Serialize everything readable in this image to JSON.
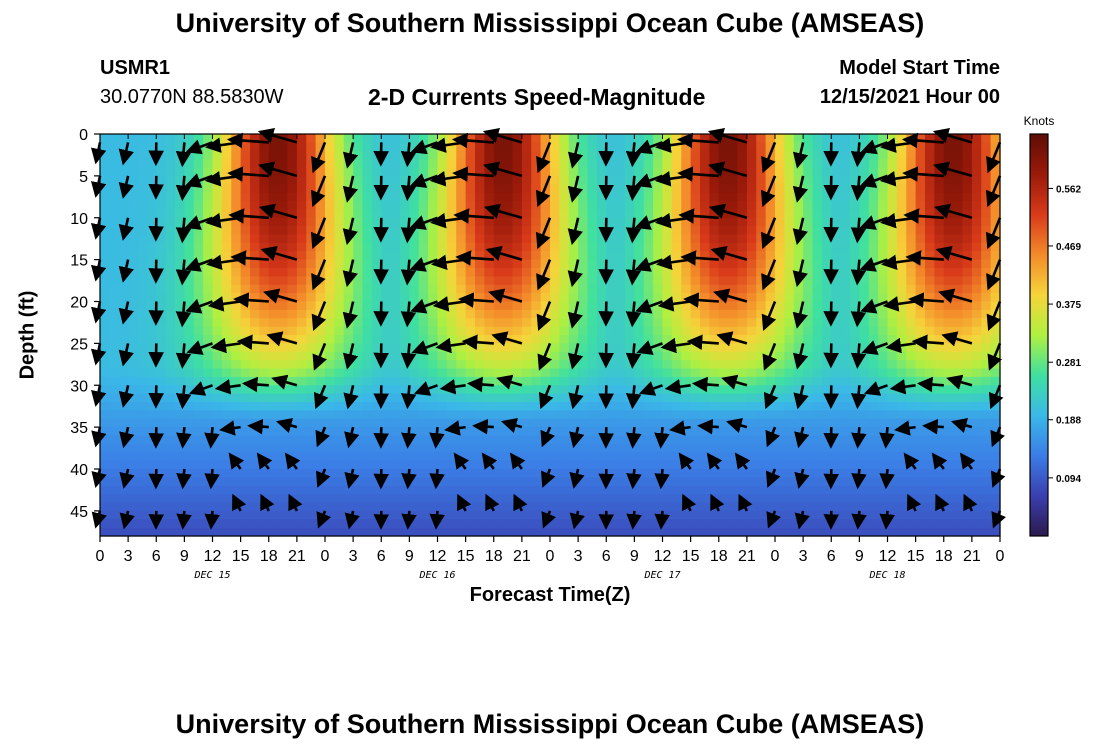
{
  "page": {
    "title_top": "University of Southern Mississippi Ocean Cube (AMSEAS)",
    "title_bottom": "University of Southern Mississippi Ocean Cube (AMSEAS)",
    "station": "USMR1",
    "location": "30.0770N  88.5830W",
    "plot_title": "2-D Currents Speed-Magnitude",
    "model_start_label": "Model Start Time",
    "model_start_value": "12/15/2021 Hour 00"
  },
  "chart_data": {
    "type": "heatmap",
    "title": "2-D Currents Speed-Magnitude",
    "xlabel": "Forecast Time(Z)",
    "ylabel": "Depth (ft)",
    "x_ticks": [
      "0",
      "3",
      "6",
      "9",
      "12",
      "15",
      "18",
      "21",
      "0",
      "3",
      "6",
      "9",
      "12",
      "15",
      "18",
      "21",
      "0",
      "3",
      "6",
      "9",
      "12",
      "15",
      "18",
      "21",
      "0",
      "3",
      "6",
      "9",
      "12",
      "15",
      "18",
      "21",
      "0"
    ],
    "day_labels": [
      {
        "label": "DEC 15",
        "hour": 12
      },
      {
        "label": "DEC 16",
        "hour": 36
      },
      {
        "label": "DEC 17",
        "hour": 60
      },
      {
        "label": "DEC 18",
        "hour": 84
      }
    ],
    "x_range_hours": [
      0,
      96
    ],
    "y_ticks": [
      0,
      5,
      10,
      15,
      20,
      25,
      30,
      35,
      40,
      45
    ],
    "y_range_ft": [
      0,
      48
    ],
    "colorbar": {
      "unit_label": "Knots",
      "min": 0.0,
      "max": 0.65,
      "ticks": [
        0.094,
        0.188,
        0.281,
        0.375,
        0.469,
        0.562
      ],
      "tick_labels": [
        "0.094",
        "0.188",
        "0.281",
        "0.375",
        "0.469",
        "0.562"
      ],
      "colors": [
        "#2b1a4d",
        "#3b3fb0",
        "#3b7de6",
        "#3ab8e8",
        "#3fe0a0",
        "#b0f040",
        "#f6d43a",
        "#f38a2a",
        "#d83a1a",
        "#9a1a0a",
        "#5e0d05"
      ]
    },
    "speed_model": {
      "description": "Approximate speed (knots) by hour and depth read from the image",
      "surface_peak_centers_hours": [
        19,
        43,
        67,
        91
      ],
      "surface_peak_max_knots": 0.62,
      "background_knots": 0.2,
      "deep_min_knots": 0.03
    },
    "vector_grid": {
      "hours_step": 3,
      "depths_ft": [
        1,
        5,
        10,
        15,
        20,
        25,
        30,
        35,
        40,
        45
      ],
      "units": "knots"
    }
  }
}
